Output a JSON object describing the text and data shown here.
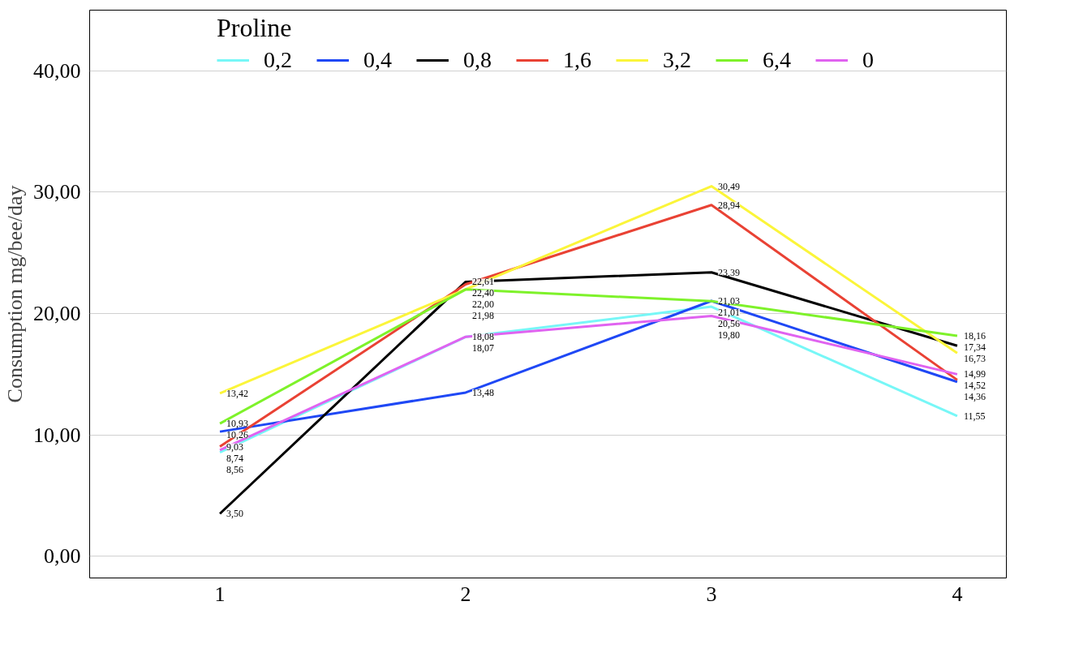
{
  "chart_data": {
    "type": "line",
    "legend_title": "Proline",
    "ylabel": "Consumption mg/bee/day",
    "x": [
      1,
      2,
      3,
      4
    ],
    "series": [
      {
        "name": "0,2",
        "color": "#77f7f7",
        "values": [
          8.56,
          18.07,
          20.56,
          11.55
        ],
        "value_labels": [
          "8,56",
          "18,07",
          "20,56",
          "11,55"
        ]
      },
      {
        "name": "0,4",
        "color": "#1f48f5",
        "values": [
          10.26,
          13.48,
          21.03,
          14.36
        ],
        "value_labels": [
          "10,26",
          "13,48",
          "21,03",
          "14,36"
        ]
      },
      {
        "name": "0,8",
        "color": "#000000",
        "values": [
          3.5,
          22.61,
          23.39,
          17.34
        ],
        "value_labels": [
          "3,50",
          "22,61",
          "23,39",
          "17,34"
        ]
      },
      {
        "name": "1,6",
        "color": "#e94234",
        "values": [
          9.03,
          22.4,
          28.94,
          14.52
        ],
        "value_labels": [
          "9,03",
          "22,40",
          "28,94",
          "14,52"
        ]
      },
      {
        "name": "3,2",
        "color": "#fbf53a",
        "values": [
          13.42,
          22.0,
          30.49,
          16.73
        ],
        "value_labels": [
          "13,42",
          "22,00",
          "30,49",
          "16,73"
        ]
      },
      {
        "name": "6,4",
        "color": "#7ef22a",
        "values": [
          10.93,
          21.98,
          21.01,
          18.16
        ],
        "value_labels": [
          "10,93",
          "21,98",
          "21,01",
          "18,16"
        ]
      },
      {
        "name": "0",
        "color": "#e063f0",
        "values": [
          8.74,
          18.08,
          19.8,
          14.99
        ],
        "value_labels": [
          "8,74",
          "18,08",
          "19,80",
          "14,99"
        ]
      }
    ],
    "xlim": [
      0.47,
      4.2
    ],
    "ylim": [
      -1.8,
      45
    ],
    "xticks": [
      1,
      2,
      3,
      4
    ],
    "yticks": [
      {
        "value": 0,
        "label": "0,00"
      },
      {
        "value": 10,
        "label": "10,00"
      },
      {
        "value": 20,
        "label": "20,00"
      },
      {
        "value": 30,
        "label": "30,00"
      },
      {
        "value": 40,
        "label": "40,00"
      }
    ],
    "grid": "y",
    "legend": "top",
    "marker": "none",
    "line_style": "solid"
  }
}
